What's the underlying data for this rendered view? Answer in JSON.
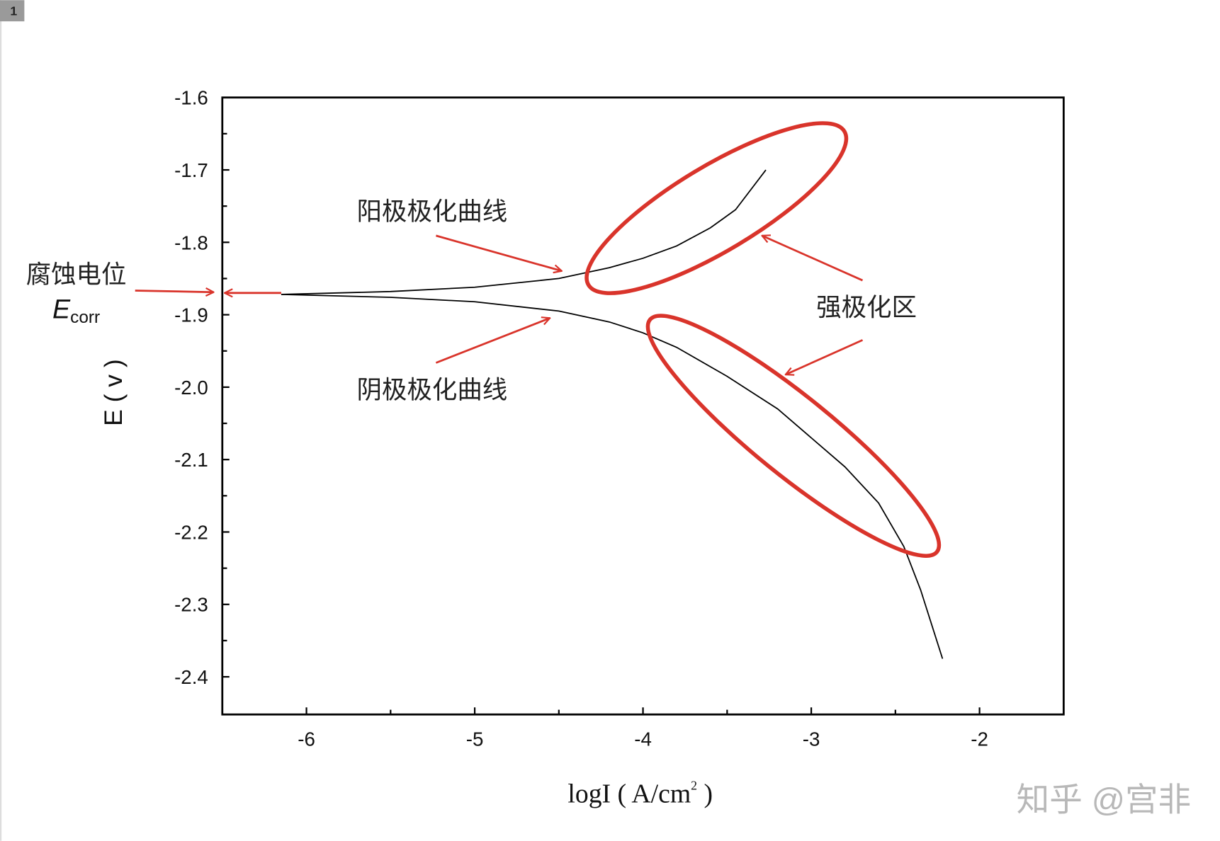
{
  "chart_data": {
    "type": "line",
    "badge": "1",
    "y_label": "E ( v )",
    "x_label": {
      "text": "logI ( A/cm",
      "sup": "2",
      "end": " )"
    },
    "series": [
      {
        "name": "阳极极化曲线",
        "color": "#000000",
        "x": [
          -6.15,
          -5.5,
          -5,
          -4.5,
          -4.2,
          -4,
          -3.8,
          -3.6,
          -3.45,
          -3.27
        ],
        "values": [
          -1.872,
          -1.868,
          -1.862,
          -1.85,
          -1.835,
          -1.822,
          -1.805,
          -1.78,
          -1.755,
          -1.7
        ]
      },
      {
        "name": "阴极极化曲线",
        "color": "#000000",
        "x": [
          -6.15,
          -5.5,
          -5,
          -4.5,
          -4.2,
          -4,
          -3.8,
          -3.5,
          -3.2,
          -3,
          -2.8,
          -2.6,
          -2.45,
          -2.35,
          -2.22
        ],
        "values": [
          -1.872,
          -1.876,
          -1.882,
          -1.895,
          -1.91,
          -1.925,
          -1.945,
          -1.985,
          -2.03,
          -2.07,
          -2.11,
          -2.16,
          -2.22,
          -2.28,
          -2.375
        ]
      }
    ],
    "annotations": {
      "strong": "强极化区",
      "ecorr": "腐蚀电位",
      "ecorr_symbol": "E",
      "ecorr_sub": "corr"
    },
    "xlim": [
      -6.5,
      -1.5
    ],
    "ylim": [
      -2.452,
      -1.6
    ],
    "xticks": [
      -6,
      -5,
      -4,
      -3,
      -2
    ],
    "minor_xticks": [
      -5.5,
      -4.5,
      -3.5,
      -2.5
    ],
    "yticks": [
      -1.6,
      -1.7,
      -1.8,
      -1.9,
      {
        "value": -2,
        "label": "-2.0"
      },
      -2.1,
      -2.2,
      -2.3,
      -2.4
    ],
    "minor_yticks": [
      -1.65,
      -1.75,
      -1.85,
      -1.95,
      -2.05,
      -2.15,
      -2.25,
      -2.35
    ],
    "grid": false,
    "watermark": "知乎 @宫非"
  }
}
